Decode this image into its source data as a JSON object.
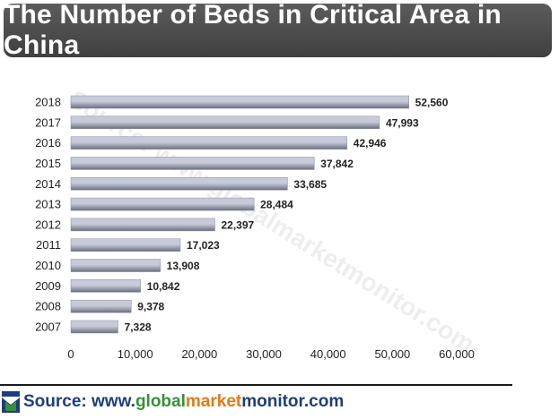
{
  "title": "The Number of Beds in Critical Area in China",
  "watermark": "Source: www.globalmarketmonitor.com",
  "footer": {
    "label": "Source: www.",
    "domain_g": "global",
    "domain_m": "market",
    "domain_mo": "monitor",
    "domain_tld": ".com"
  },
  "colors": {
    "bar_dark": "#6a6f80",
    "bar_light": "#c7cad8",
    "title_bg": "#4a4a4a",
    "accent_green": "#3a8f3a",
    "accent_orange": "#e07b1a",
    "accent_blue": "#1f3d78"
  },
  "chart_data": {
    "type": "bar",
    "orientation": "horizontal",
    "title": "The Number of Beds in Critical Area in China",
    "categories": [
      "2018",
      "2017",
      "2016",
      "2015",
      "2014",
      "2013",
      "2012",
      "2011",
      "2010",
      "2009",
      "2008",
      "2007"
    ],
    "values": [
      52560,
      47993,
      42946,
      37842,
      33685,
      28484,
      22397,
      17023,
      13908,
      10842,
      9378,
      7328
    ],
    "data_labels": [
      "52,560",
      "47,993",
      "42,946",
      "37,842",
      "33,685",
      "28,484",
      "22,397",
      "17,023",
      "13,908",
      "10,842",
      "9,378",
      "7,328"
    ],
    "xlim": [
      0,
      60000
    ],
    "xticks": [
      0,
      10000,
      20000,
      30000,
      40000,
      50000,
      60000
    ],
    "xtick_labels": [
      "0",
      "10,000",
      "20,000",
      "30,000",
      "40,000",
      "50,000",
      "60,000"
    ],
    "grid": false,
    "legend": "none"
  }
}
